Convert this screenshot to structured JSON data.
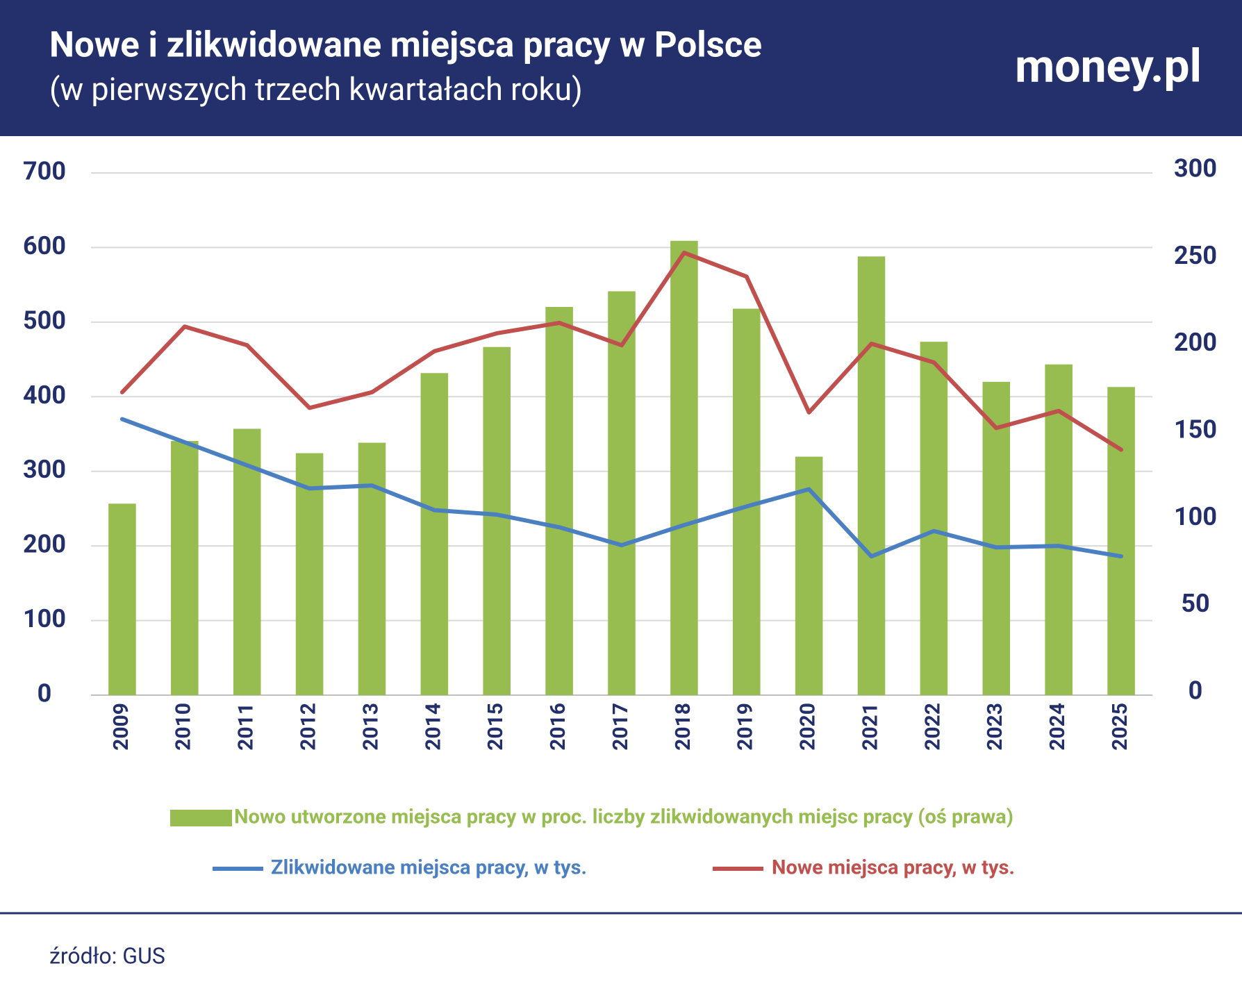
{
  "chart_data": {
    "type": "combo",
    "title": "Nowe i zlikwidowane miejsca pracy w Polsce",
    "subtitle": "(w pierwszych trzech kwartałach roku)",
    "logo": "money.pl",
    "source": "źródło: GUS",
    "categories": [
      "2009",
      "2010",
      "2011",
      "2012",
      "2013",
      "2014",
      "2015",
      "2016",
      "2017",
      "2018",
      "2019",
      "2020",
      "2021",
      "2022",
      "2023",
      "2024",
      "2025"
    ],
    "series": [
      {
        "name": "Nowo utworzone miejsca pracy w proc. liczby zlikwidowanych miejsc pracy (oś prawa)",
        "type": "bar",
        "axis": "y2",
        "color": "#97bc4f",
        "values": [
          110,
          146,
          153,
          139,
          145,
          185,
          200,
          223,
          232,
          261,
          222,
          137,
          252,
          203,
          180,
          190,
          177
        ]
      },
      {
        "name": "Zlikwidowane miejsca pracy, w tys.",
        "type": "line",
        "color": "#4a7fc1",
        "values": [
          370,
          339,
          308,
          277,
          281,
          248,
          242,
          225,
          201,
          228,
          253,
          276,
          186,
          220,
          198,
          200,
          186
        ]
      },
      {
        "name": "Nowe miejsca pracy, w tys.",
        "type": "line",
        "color": "#c0504d",
        "values": [
          406,
          494,
          469,
          385,
          406,
          461,
          485,
          499,
          469,
          593,
          561,
          379,
          471,
          446,
          358,
          381,
          329
        ]
      }
    ],
    "ylim": [
      0,
      700
    ],
    "yticks": [
      0,
      100,
      200,
      300,
      400,
      500,
      600,
      700
    ],
    "y2lim": [
      0,
      300
    ],
    "y2ticks": [
      0,
      50,
      100,
      150,
      200,
      250,
      300
    ],
    "grid": true
  }
}
